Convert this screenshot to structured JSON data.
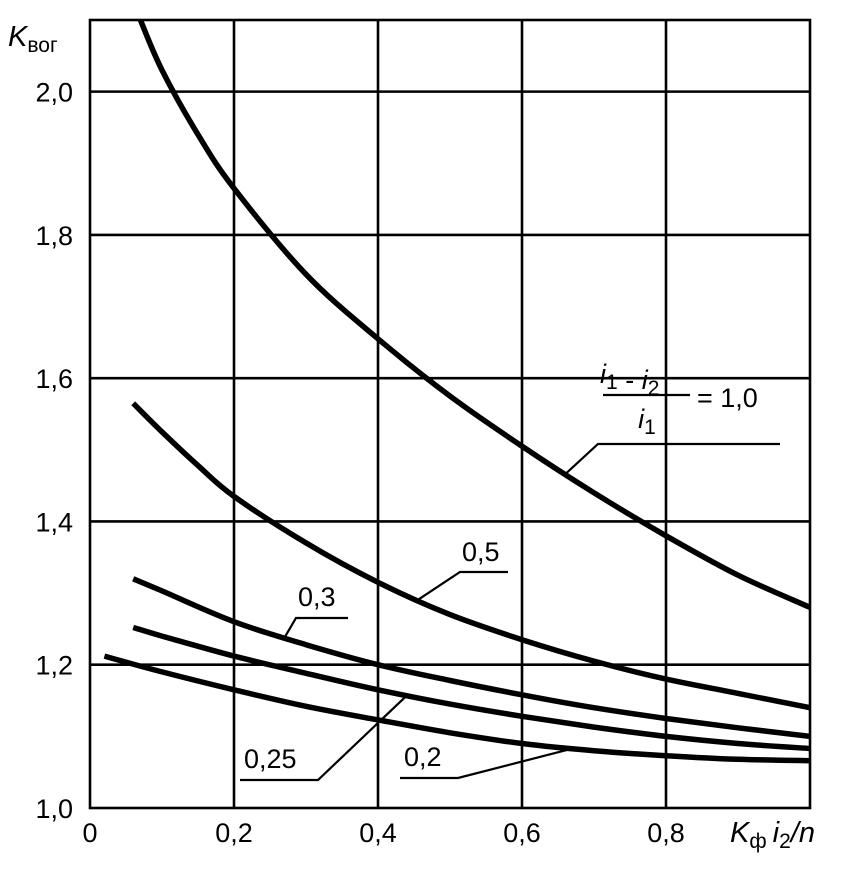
{
  "chart_data": {
    "type": "line",
    "xlabel": {
      "main": "K",
      "sub": "ф",
      "rest": "i",
      "rest_sub": "2",
      "tail": "/n"
    },
    "ylabel": {
      "main": "K",
      "sub": "вог"
    },
    "xlim": [
      0,
      1.0
    ],
    "ylim": [
      1.0,
      2.1
    ],
    "grid": true,
    "x_ticks": [
      {
        "value": 0,
        "label": "0"
      },
      {
        "value": 0.2,
        "label": "0,2"
      },
      {
        "value": 0.4,
        "label": "0,4"
      },
      {
        "value": 0.6,
        "label": "0,6"
      },
      {
        "value": 0.8,
        "label": "0,8"
      }
    ],
    "y_ticks": [
      {
        "value": 1.0,
        "label": "1,0"
      },
      {
        "value": 1.2,
        "label": "1,2"
      },
      {
        "value": 1.4,
        "label": "1,4"
      },
      {
        "value": 1.6,
        "label": "1,6"
      },
      {
        "value": 1.8,
        "label": "1,8"
      },
      {
        "value": 2.0,
        "label": "2,0"
      }
    ],
    "parameter_formula": {
      "numerator": [
        {
          "t": "i",
          "sub": "1"
        },
        {
          "t": " - "
        },
        {
          "t": "i",
          "sub": "2"
        }
      ],
      "denominator": [
        {
          "t": "i",
          "sub": "1"
        }
      ],
      "equals": "= 1,0"
    },
    "series": [
      {
        "name": "1,0",
        "x": [
          0.07,
          0.1,
          0.15,
          0.2,
          0.3,
          0.4,
          0.5,
          0.6,
          0.7,
          0.8,
          0.9,
          1.0
        ],
        "y": [
          2.1,
          2.03,
          1.94,
          1.865,
          1.745,
          1.655,
          1.575,
          1.505,
          1.44,
          1.38,
          1.325,
          1.28
        ]
      },
      {
        "name": "0,5",
        "x": [
          0.06,
          0.1,
          0.15,
          0.2,
          0.3,
          0.4,
          0.5,
          0.6,
          0.7,
          0.8,
          0.9,
          1.0
        ],
        "y": [
          1.565,
          1.525,
          1.478,
          1.435,
          1.37,
          1.315,
          1.27,
          1.235,
          1.205,
          1.18,
          1.16,
          1.14
        ]
      },
      {
        "name": "0,3",
        "x": [
          0.06,
          0.1,
          0.2,
          0.3,
          0.4,
          0.5,
          0.6,
          0.7,
          0.8,
          0.9,
          1.0
        ],
        "y": [
          1.32,
          1.303,
          1.26,
          1.228,
          1.2,
          1.178,
          1.158,
          1.14,
          1.125,
          1.112,
          1.1
        ]
      },
      {
        "name": "0,25",
        "x": [
          0.06,
          0.1,
          0.2,
          0.3,
          0.4,
          0.5,
          0.6,
          0.7,
          0.8,
          0.9,
          1.0
        ],
        "y": [
          1.252,
          1.24,
          1.212,
          1.188,
          1.165,
          1.145,
          1.128,
          1.113,
          1.1,
          1.09,
          1.083
        ]
      },
      {
        "name": "0,2",
        "x": [
          0.02,
          0.1,
          0.2,
          0.3,
          0.4,
          0.5,
          0.6,
          0.7,
          0.8,
          0.9,
          1.0
        ],
        "y": [
          1.212,
          1.19,
          1.165,
          1.142,
          1.123,
          1.105,
          1.09,
          1.08,
          1.073,
          1.068,
          1.066
        ]
      }
    ],
    "labels": [
      {
        "series": "0,5",
        "text": "0,5"
      },
      {
        "series": "0,3",
        "text": "0,3"
      },
      {
        "series": "0,25",
        "text": "0,25"
      },
      {
        "series": "0,2",
        "text": "0,2"
      }
    ]
  }
}
